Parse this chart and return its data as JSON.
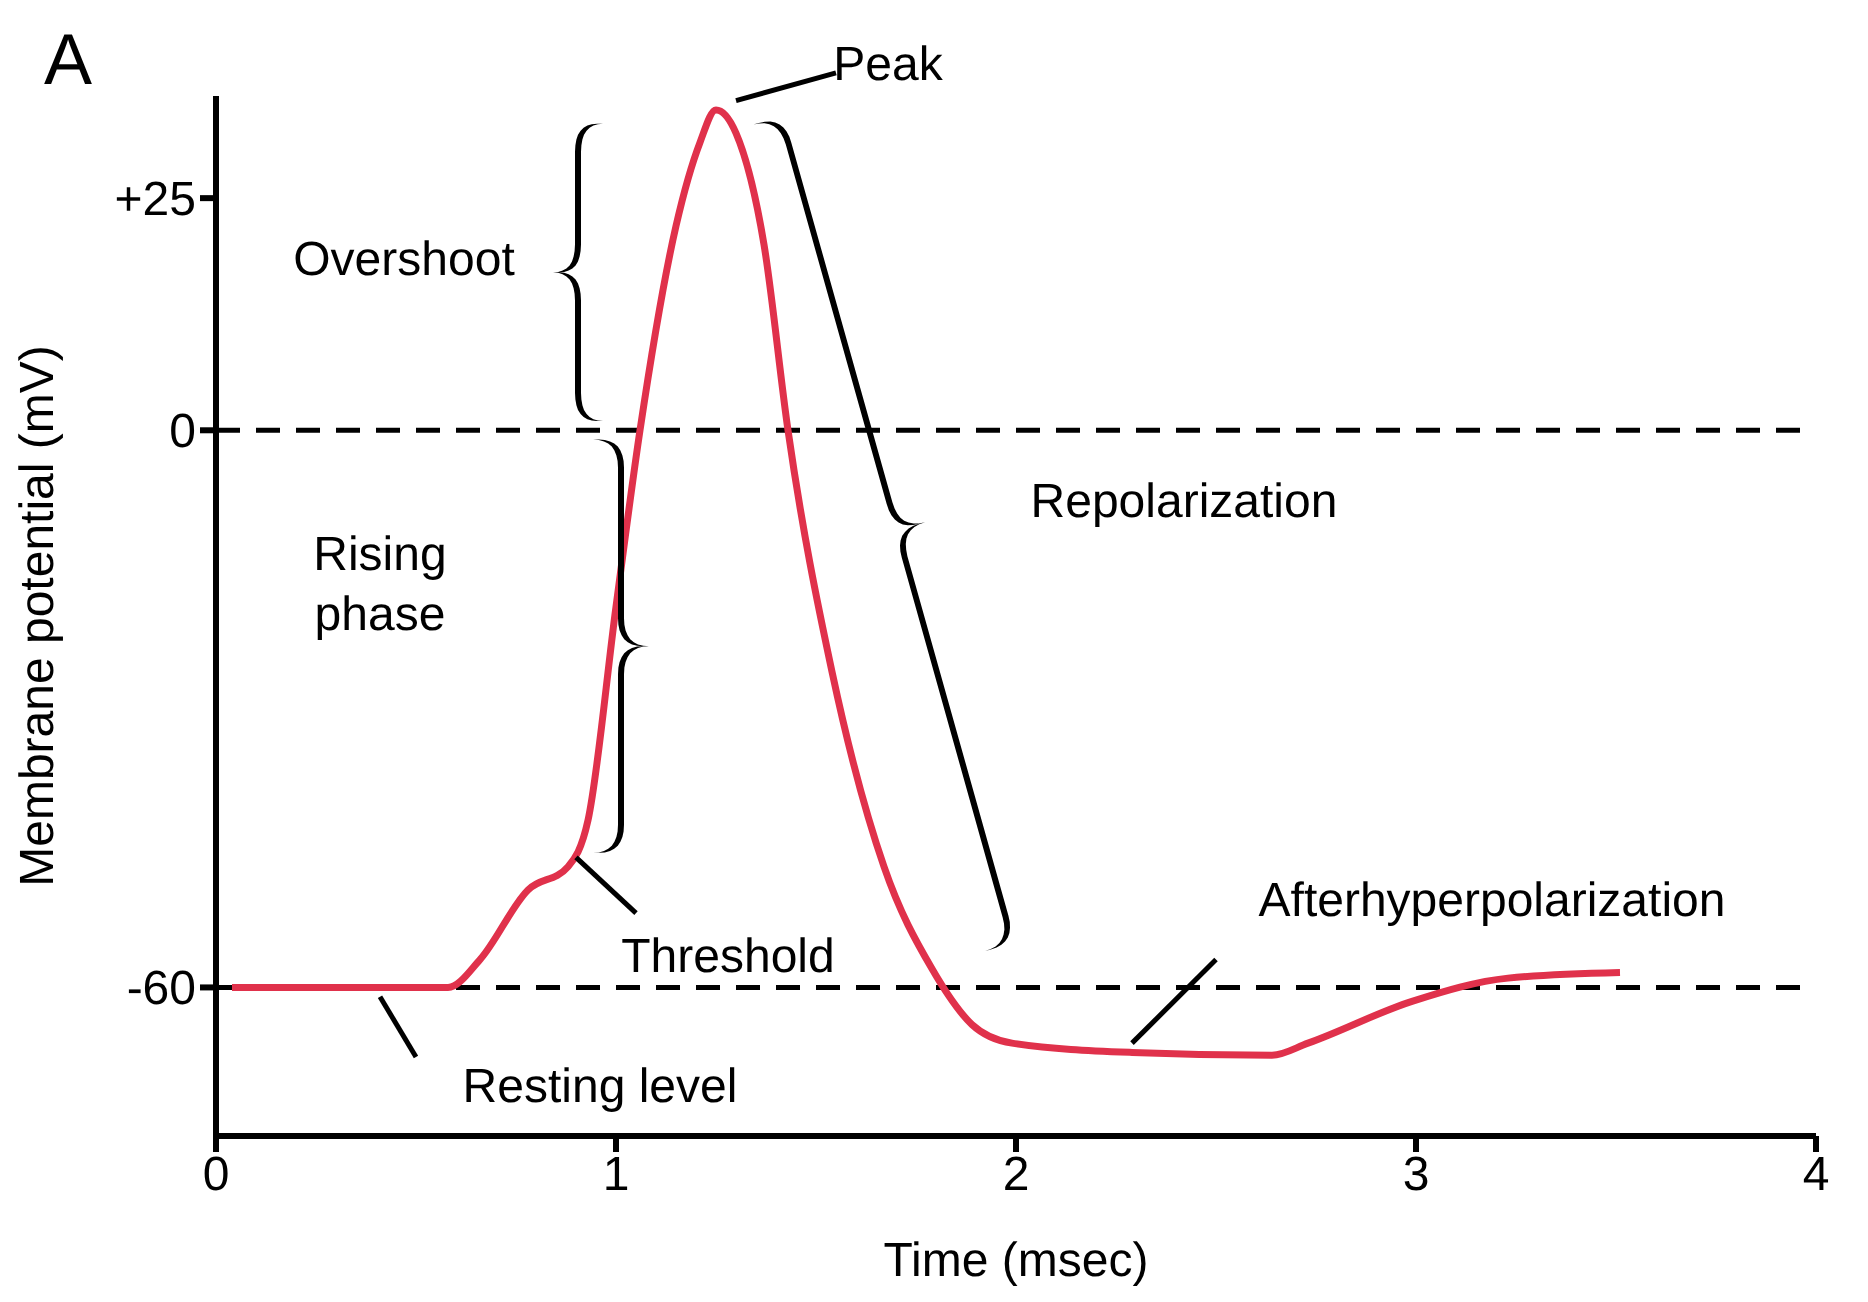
{
  "chart_data": {
    "type": "line",
    "title": "A",
    "xlabel": "Time (msec)",
    "ylabel": "Membrane potential (mV)",
    "xlim": [
      0,
      4
    ],
    "xticks": [
      0,
      1,
      2,
      3,
      4
    ],
    "ylim": [
      -76,
      36
    ],
    "yticks": [
      {
        "value": 25,
        "label": "+25"
      },
      0,
      -60
    ],
    "marker": "none",
    "grid": false,
    "series": [
      {
        "color": "#e0314b",
        "x": [
          0.04,
          0.58,
          0.66,
          0.78,
          0.88,
          0.93,
          1.0,
          1.06,
          1.15,
          1.21,
          1.25,
          1.3,
          1.37,
          1.43,
          1.54,
          1.67,
          1.79,
          1.89,
          1.99,
          2.29,
          2.64,
          2.73,
          2.99,
          3.23,
          3.51
        ],
        "values": [
          -60,
          -60,
          -57,
          -49.5,
          -47,
          -42,
          -19,
          0,
          22,
          31,
          34.5,
          32,
          20,
          0,
          -26,
          -47,
          -58,
          -64,
          -66,
          -67,
          -67.3,
          -66,
          -61.5,
          -59,
          -58.4
        ]
      }
    ],
    "ref_lines": [
      {
        "axis": "y",
        "value": 0,
        "color": "#000000",
        "line_style": "dashed"
      },
      {
        "axis": "y",
        "value": -60,
        "color": "#000000",
        "line_style": "dashed"
      }
    ],
    "annotations": [
      {
        "text": "Peak",
        "x": 1.25,
        "y": 34.5
      },
      "Overshoot",
      "Rising phase",
      "Repolarization",
      {
        "text": "Threshold",
        "x": 0.88,
        "y": -47
      },
      {
        "text": "Resting level",
        "x": 0.41,
        "y": -60
      },
      {
        "text": "Afterhyperpolarization",
        "x": 2.29,
        "y": -67
      }
    ]
  }
}
